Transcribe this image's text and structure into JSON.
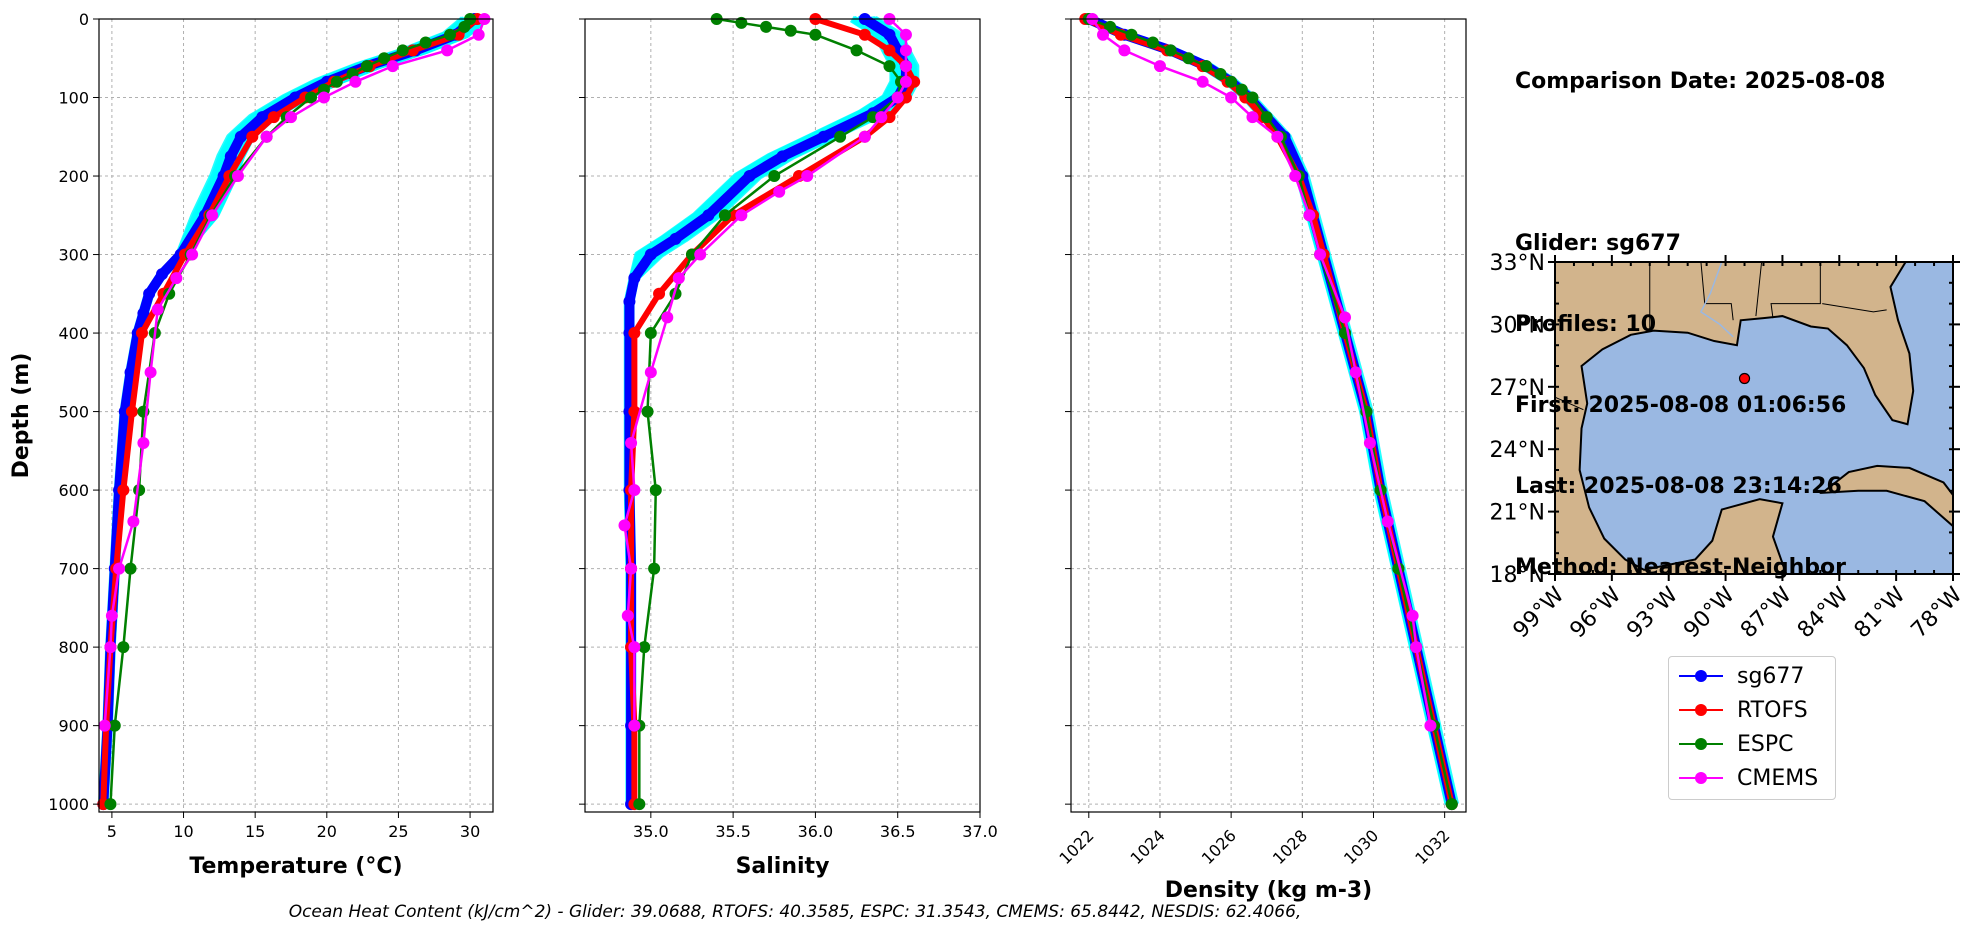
{
  "info": {
    "comparison": "Comparison Date: 2025-08-08",
    "glider": "Glider: sg677",
    "profiles": "Profiles: 10",
    "first": "First: 2025-08-08 01:06:56",
    "last": "Last: 2025-08-08 23:14:26",
    "method": "Method: Nearest-Neighbor"
  },
  "footer": "Ocean Heat Content (kJ/cm^2) - Glider: 39.0688,  RTOFS: 40.3585,  ESPC: 31.3543,  CMEMS: 65.8442,  NESDIS: 62.4066,",
  "colors": {
    "sg677": "#0000ff",
    "RTOFS": "#ff0000",
    "ESPC": "#008000",
    "CMEMS": "#ff00ff",
    "glider_profiles": "#00ffff",
    "land": "#d2b48c",
    "ocean": "#9ab8e2"
  },
  "legend": [
    {
      "name": "sg677",
      "color": "#0000ff"
    },
    {
      "name": "RTOFS",
      "color": "#ff0000"
    },
    {
      "name": "ESPC",
      "color": "#008000"
    },
    {
      "name": "CMEMS",
      "color": "#ff00ff"
    }
  ],
  "chart_data": [
    {
      "type": "line",
      "xlabel": "Temperature (°C)",
      "ylabel": "Depth (m)",
      "xlim": [
        4.1,
        31.6
      ],
      "ylim": [
        1010,
        0
      ],
      "xticks": [
        5,
        10,
        15,
        20,
        25,
        30
      ],
      "yticks": [
        0,
        100,
        200,
        300,
        400,
        500,
        600,
        700,
        800,
        900,
        1000
      ],
      "grid": true,
      "series": [
        {
          "name": "sg677",
          "depth": [
            0,
            20,
            40,
            60,
            80,
            100,
            125,
            150,
            175,
            200,
            250,
            300,
            325,
            350,
            375,
            400,
            450,
            500,
            600,
            700,
            800,
            900,
            1000
          ],
          "values": [
            30.3,
            29.0,
            26.2,
            22.8,
            20.0,
            17.8,
            15.5,
            14.0,
            13.3,
            12.8,
            11.5,
            9.8,
            8.5,
            7.6,
            7.2,
            6.8,
            6.3,
            5.9,
            5.5,
            5.2,
            4.9,
            4.7,
            4.4
          ]
        },
        {
          "name": "RTOFS",
          "depth": [
            0,
            20,
            40,
            60,
            80,
            100,
            125,
            150,
            200,
            250,
            300,
            350,
            400,
            500,
            600,
            700,
            800,
            900,
            1000
          ],
          "values": [
            30.5,
            29.2,
            26.0,
            23.0,
            20.5,
            18.5,
            16.3,
            14.8,
            13.2,
            11.8,
            10.1,
            8.6,
            7.1,
            6.4,
            5.8,
            5.3,
            4.9,
            4.6,
            4.4
          ]
        },
        {
          "name": "ESPC",
          "depth": [
            0,
            10,
            20,
            30,
            40,
            50,
            60,
            70,
            80,
            90,
            100,
            125,
            150,
            200,
            250,
            300,
            350,
            400,
            500,
            600,
            700,
            800,
            900,
            1000
          ],
          "values": [
            30.0,
            29.6,
            28.6,
            26.9,
            25.3,
            24.0,
            22.8,
            21.8,
            20.7,
            19.8,
            18.9,
            17.2,
            15.8,
            13.6,
            11.9,
            10.5,
            9.0,
            8.0,
            7.2,
            6.9,
            6.3,
            5.8,
            5.2,
            4.9
          ]
        },
        {
          "name": "CMEMS",
          "depth": [
            0,
            20,
            40,
            60,
            80,
            100,
            125,
            150,
            200,
            250,
            300,
            330,
            370,
            450,
            540,
            640,
            700,
            760,
            800,
            900
          ],
          "values": [
            31.0,
            30.6,
            28.4,
            24.6,
            22.0,
            19.8,
            17.5,
            15.8,
            13.8,
            12.0,
            10.6,
            9.5,
            8.2,
            7.7,
            7.2,
            6.5,
            5.5,
            5.0,
            4.9,
            4.5
          ]
        }
      ]
    },
    {
      "type": "line",
      "xlabel": "Salinity",
      "xlim": [
        34.6,
        37.0
      ],
      "ylim": [
        1010,
        0
      ],
      "xticks": [
        35.0,
        35.5,
        36.0,
        36.5,
        37.0
      ],
      "yticks": [
        0,
        100,
        200,
        300,
        400,
        500,
        600,
        700,
        800,
        900,
        1000
      ],
      "grid": true,
      "series": [
        {
          "name": "sg677",
          "depth": [
            0,
            20,
            40,
            60,
            80,
            100,
            120,
            150,
            175,
            200,
            250,
            280,
            300,
            330,
            360,
            400,
            500,
            600,
            700,
            800,
            900,
            1000
          ],
          "values": [
            36.3,
            36.45,
            36.5,
            36.55,
            36.55,
            36.5,
            36.35,
            36.05,
            35.8,
            35.6,
            35.35,
            35.15,
            35.0,
            34.9,
            34.87,
            34.87,
            34.87,
            34.87,
            34.88,
            34.88,
            34.88,
            34.88
          ]
        },
        {
          "name": "RTOFS",
          "depth": [
            0,
            20,
            40,
            60,
            80,
            100,
            125,
            150,
            200,
            250,
            300,
            350,
            400,
            500,
            600,
            700,
            800,
            900,
            1000
          ],
          "values": [
            36.0,
            36.3,
            36.45,
            36.55,
            36.6,
            36.55,
            36.45,
            36.3,
            35.9,
            35.5,
            35.25,
            35.05,
            34.9,
            34.9,
            34.88,
            34.88,
            34.88,
            34.9,
            34.9
          ]
        },
        {
          "name": "ESPC",
          "depth": [
            0,
            5,
            10,
            15,
            20,
            40,
            60,
            80,
            100,
            125,
            150,
            200,
            250,
            300,
            350,
            400,
            500,
            600,
            700,
            800,
            900,
            1000
          ],
          "values": [
            35.4,
            35.55,
            35.7,
            35.85,
            36.0,
            36.25,
            36.45,
            36.52,
            36.5,
            36.35,
            36.15,
            35.75,
            35.45,
            35.25,
            35.15,
            35.0,
            34.98,
            35.03,
            35.02,
            34.96,
            34.93,
            34.93
          ]
        },
        {
          "name": "CMEMS",
          "depth": [
            0,
            20,
            40,
            60,
            80,
            100,
            125,
            150,
            200,
            220,
            250,
            300,
            330,
            380,
            450,
            540,
            600,
            645,
            700,
            760,
            800,
            900
          ],
          "values": [
            36.45,
            36.55,
            36.55,
            36.55,
            36.55,
            36.5,
            36.4,
            36.3,
            35.95,
            35.78,
            35.55,
            35.3,
            35.17,
            35.1,
            35.0,
            34.88,
            34.9,
            34.84,
            34.88,
            34.86,
            34.9,
            34.9
          ]
        }
      ]
    },
    {
      "type": "line",
      "xlabel": "Density (kg m-3)",
      "xlim": [
        1021.5,
        1032.6
      ],
      "ylim": [
        1010,
        0
      ],
      "xticks": [
        1022,
        1024,
        1026,
        1028,
        1030,
        1032
      ],
      "yticks": [
        0,
        100,
        200,
        300,
        400,
        500,
        600,
        700,
        800,
        900,
        1000
      ],
      "grid": true,
      "series": [
        {
          "name": "sg677",
          "depth": [
            0,
            20,
            40,
            60,
            80,
            100,
            125,
            150,
            200,
            250,
            300,
            400,
            500,
            600,
            700,
            800,
            900,
            1000
          ],
          "values": [
            1022.0,
            1023.0,
            1024.3,
            1025.3,
            1026.0,
            1026.5,
            1027.0,
            1027.5,
            1028.0,
            1028.3,
            1028.6,
            1029.2,
            1029.8,
            1030.2,
            1030.7,
            1031.2,
            1031.7,
            1032.2
          ]
        },
        {
          "name": "RTOFS",
          "depth": [
            0,
            20,
            40,
            60,
            80,
            100,
            125,
            150,
            200,
            250,
            300,
            400,
            500,
            600,
            700,
            800,
            900,
            1000
          ],
          "values": [
            1021.9,
            1022.9,
            1024.2,
            1025.2,
            1025.9,
            1026.4,
            1026.9,
            1027.3,
            1027.9,
            1028.3,
            1028.6,
            1029.2,
            1029.8,
            1030.2,
            1030.7,
            1031.2,
            1031.7,
            1032.2
          ]
        },
        {
          "name": "ESPC",
          "depth": [
            0,
            10,
            20,
            30,
            40,
            50,
            60,
            70,
            80,
            90,
            100,
            125,
            150,
            200,
            250,
            300,
            400,
            500,
            600,
            700,
            800,
            900,
            1000
          ],
          "values": [
            1022.0,
            1022.6,
            1023.2,
            1023.8,
            1024.3,
            1024.8,
            1025.3,
            1025.7,
            1026.0,
            1026.3,
            1026.6,
            1027.0,
            1027.4,
            1027.9,
            1028.2,
            1028.5,
            1029.2,
            1029.8,
            1030.2,
            1030.7,
            1031.2,
            1031.7,
            1032.2
          ]
        },
        {
          "name": "CMEMS",
          "depth": [
            0,
            20,
            40,
            60,
            80,
            100,
            125,
            150,
            200,
            250,
            300,
            380,
            450,
            540,
            640,
            760,
            800,
            900
          ],
          "values": [
            1022.1,
            1022.4,
            1023.0,
            1024.0,
            1025.2,
            1026.0,
            1026.6,
            1027.3,
            1027.8,
            1028.2,
            1028.5,
            1029.2,
            1029.5,
            1029.9,
            1030.4,
            1031.1,
            1031.2,
            1031.6
          ]
        }
      ]
    },
    {
      "type": "map",
      "xlim": [
        -99,
        -78
      ],
      "ylim": [
        18,
        33
      ],
      "xticks": [
        "99°W",
        "96°W",
        "93°W",
        "90°W",
        "87°W",
        "84°W",
        "81°W",
        "78°W"
      ],
      "yticks": [
        "18°N",
        "21°N",
        "24°N",
        "27°N",
        "30°N",
        "33°N"
      ],
      "glider_location": {
        "lon": -89.0,
        "lat": 27.4
      }
    }
  ]
}
